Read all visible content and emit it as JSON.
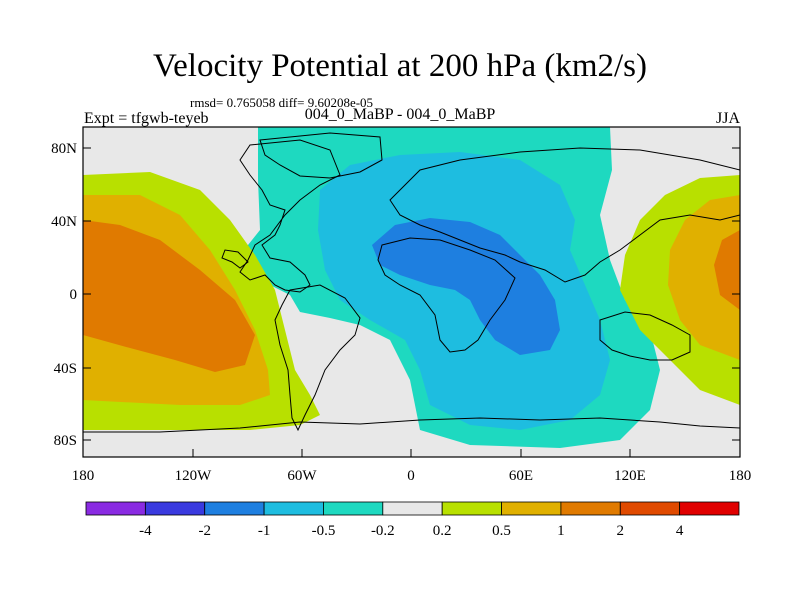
{
  "title": "Velocity Potential at 200 hPa (km2/s)",
  "stats": "rmsd= 0.765058 diff= 9.60208e-05",
  "left_label": "Expt = tfgwb-teyeb",
  "center_label": "004_0_MaBP - 004_0_MaBP",
  "right_label": "JJA",
  "y_tick_labels": [
    "80N",
    "40N",
    "0",
    "40S",
    "80S"
  ],
  "x_tick_labels": [
    "180",
    "120W",
    "60W",
    "0",
    "60E",
    "120E",
    "180"
  ],
  "colorbar": {
    "colors": [
      "#8a2be2",
      "#3a3adf",
      "#1e7fe0",
      "#1ebde0",
      "#1ed9c0",
      "#e8e8e8",
      "#b8e000",
      "#e0b000",
      "#e07a00",
      "#e04a00",
      "#e00000"
    ],
    "labels": [
      "-4",
      "-2",
      "-1",
      "-0.5",
      "-0.2",
      "0.2",
      "0.5",
      "1",
      "2",
      "4"
    ]
  }
}
